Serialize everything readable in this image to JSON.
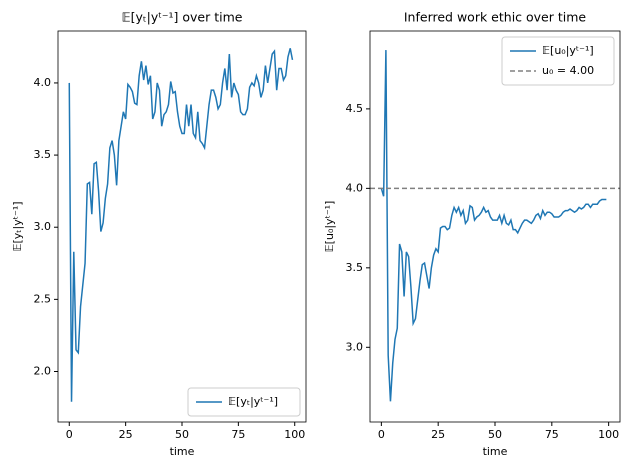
{
  "chart_data": [
    {
      "type": "line",
      "title": "𝔼[yₜ|yᵗ⁻¹] over time",
      "x_label": "time",
      "y_label": "𝔼[yₜ|yᵗ⁻¹]",
      "x": [
        0,
        1,
        2,
        3,
        4,
        5,
        6,
        7,
        8,
        9,
        10,
        11,
        12,
        13,
        14,
        15,
        16,
        17,
        18,
        19,
        20,
        21,
        22,
        23,
        24,
        25,
        26,
        27,
        28,
        29,
        30,
        31,
        32,
        33,
        34,
        35,
        36,
        37,
        38,
        39,
        40,
        41,
        42,
        43,
        44,
        45,
        46,
        47,
        48,
        49,
        50,
        51,
        52,
        53,
        54,
        55,
        56,
        57,
        58,
        59,
        60,
        61,
        62,
        63,
        64,
        65,
        66,
        67,
        68,
        69,
        70,
        71,
        72,
        73,
        74,
        75,
        76,
        77,
        78,
        79,
        80,
        81,
        82,
        83,
        84,
        85,
        86,
        87,
        88,
        89,
        90,
        91,
        92,
        93,
        94,
        95,
        96,
        97,
        98,
        99
      ],
      "series": [
        {
          "name": "𝔼[yₜ|yᵗ⁻¹]",
          "color": "#1f77b4",
          "values": [
            4.0,
            1.79,
            2.83,
            2.15,
            2.13,
            2.45,
            2.6,
            2.75,
            3.3,
            3.31,
            3.09,
            3.44,
            3.45,
            3.25,
            2.97,
            3.03,
            3.2,
            3.3,
            3.55,
            3.6,
            3.5,
            3.29,
            3.6,
            3.7,
            3.8,
            3.75,
            3.99,
            3.97,
            3.94,
            3.86,
            3.85,
            4.05,
            4.15,
            4.02,
            4.12,
            3.99,
            4.05,
            3.75,
            3.8,
            4.0,
            3.95,
            3.7,
            3.78,
            3.8,
            3.85,
            4.01,
            3.93,
            3.94,
            3.8,
            3.7,
            3.65,
            3.65,
            3.85,
            3.7,
            3.85,
            3.65,
            3.62,
            3.8,
            3.6,
            3.58,
            3.55,
            3.7,
            3.85,
            3.95,
            3.95,
            3.9,
            3.82,
            3.85,
            4.0,
            4.1,
            3.95,
            4.2,
            3.9,
            4.0,
            3.95,
            3.92,
            3.8,
            3.78,
            3.78,
            3.82,
            3.97,
            4.0,
            3.98,
            4.05,
            4.0,
            3.9,
            3.95,
            4.12,
            4.0,
            4.1,
            4.2,
            4.22,
            3.95,
            4.1,
            4.1,
            4.02,
            4.05,
            4.18,
            4.24,
            4.16
          ]
        }
      ],
      "reference_lines": [],
      "xlim": [
        -5,
        105
      ],
      "xticks": [
        0,
        25,
        50,
        75,
        100
      ],
      "ylim": [
        1.65,
        4.36
      ],
      "yticks": [
        {
          "value": 2,
          "label": "2.0"
        },
        2.5,
        {
          "value": 3,
          "label": "3.0"
        },
        3.5,
        {
          "value": 4,
          "label": "4.0"
        }
      ],
      "legend": "lower right"
    },
    {
      "type": "line",
      "title": "Inferred work ethic over time",
      "x_label": "time",
      "y_label": "𝔼[u₀|yᵗ⁻¹]",
      "x": [
        0,
        1,
        2,
        3,
        4,
        5,
        6,
        7,
        8,
        9,
        10,
        11,
        12,
        13,
        14,
        15,
        16,
        17,
        18,
        19,
        20,
        21,
        22,
        23,
        24,
        25,
        26,
        27,
        28,
        29,
        30,
        31,
        32,
        33,
        34,
        35,
        36,
        37,
        38,
        39,
        40,
        41,
        42,
        43,
        44,
        45,
        46,
        47,
        48,
        49,
        50,
        51,
        52,
        53,
        54,
        55,
        56,
        57,
        58,
        59,
        60,
        61,
        62,
        63,
        64,
        65,
        66,
        67,
        68,
        69,
        70,
        71,
        72,
        73,
        74,
        75,
        76,
        77,
        78,
        79,
        80,
        81,
        82,
        83,
        84,
        85,
        86,
        87,
        88,
        89,
        90,
        91,
        92,
        93,
        94,
        95,
        96,
        97,
        98,
        99
      ],
      "series": [
        {
          "name": "𝔼[u₀|yᵗ⁻¹]",
          "color": "#1f77b4",
          "values": [
            4.0,
            3.95,
            4.87,
            2.95,
            2.66,
            2.9,
            3.05,
            3.12,
            3.65,
            3.6,
            3.32,
            3.6,
            3.57,
            3.38,
            3.15,
            3.18,
            3.3,
            3.42,
            3.52,
            3.53,
            3.45,
            3.37,
            3.5,
            3.58,
            3.62,
            3.6,
            3.75,
            3.76,
            3.76,
            3.74,
            3.75,
            3.83,
            3.88,
            3.85,
            3.88,
            3.83,
            3.86,
            3.78,
            3.8,
            3.89,
            3.88,
            3.8,
            3.82,
            3.83,
            3.85,
            3.88,
            3.85,
            3.86,
            3.82,
            3.8,
            3.8,
            3.8,
            3.83,
            3.78,
            3.83,
            3.78,
            3.77,
            3.8,
            3.74,
            3.74,
            3.72,
            3.75,
            3.78,
            3.8,
            3.8,
            3.79,
            3.78,
            3.8,
            3.83,
            3.84,
            3.81,
            3.86,
            3.83,
            3.85,
            3.85,
            3.84,
            3.82,
            3.82,
            3.82,
            3.83,
            3.85,
            3.86,
            3.86,
            3.87,
            3.86,
            3.85,
            3.86,
            3.88,
            3.87,
            3.88,
            3.9,
            3.9,
            3.88,
            3.9,
            3.9,
            3.9,
            3.92,
            3.93,
            3.93,
            3.93
          ]
        }
      ],
      "reference_lines": [
        {
          "name": "u₀ = 4.00",
          "value": 4.0,
          "color": "#808080",
          "dashed": true
        }
      ],
      "xlim": [
        -5,
        105
      ],
      "xticks": [
        0,
        25,
        50,
        75,
        100
      ],
      "ylim": [
        2.53,
        4.99
      ],
      "yticks": [
        {
          "value": 3,
          "label": "3.0"
        },
        3.5,
        {
          "value": 4,
          "label": "4.0"
        },
        4.5
      ],
      "legend": "upper right"
    }
  ]
}
